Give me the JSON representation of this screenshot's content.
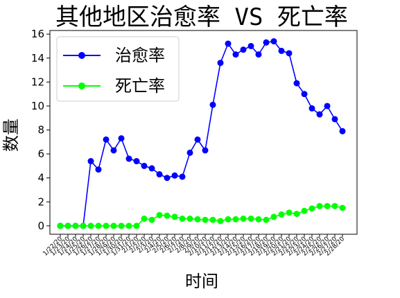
{
  "chart_data": {
    "type": "line",
    "title": "其他地区治愈率 VS 死亡率",
    "xlabel": "时间",
    "ylabel": "数量",
    "ylim": [
      -0.7,
      16.3
    ],
    "yticks": [
      0,
      2,
      4,
      6,
      8,
      10,
      12,
      14,
      16
    ],
    "grid": false,
    "legend_position": "top-left",
    "categories": [
      "1/22/20",
      "1/23/20",
      "1/24/20",
      "1/25/20",
      "1/26/20",
      "1/27/20",
      "1/28/20",
      "1/29/20",
      "1/30/20",
      "1/31/20",
      "2/1/20",
      "2/2/20",
      "2/3/20",
      "2/4/20",
      "2/5/20",
      "2/6/20",
      "2/7/20",
      "2/8/20",
      "2/9/20",
      "2/10/20",
      "2/11/20",
      "2/12/20",
      "2/13/20",
      "2/14/20",
      "2/15/20",
      "2/16/20",
      "2/17/20",
      "2/18/20",
      "2/19/20",
      "2/20/20",
      "2/21/20",
      "2/22/20",
      "2/23/20",
      "2/24/20",
      "2/25/20",
      "2/26/20",
      "2/27/20",
      "2/28/20"
    ],
    "series": [
      {
        "name": "治愈率",
        "color": "#0000ff",
        "values": [
          0,
          0,
          0,
          0,
          5.4,
          4.7,
          7.2,
          6.3,
          7.3,
          5.6,
          5.4,
          5.0,
          4.8,
          4.3,
          4.0,
          4.2,
          4.1,
          6.1,
          7.2,
          6.3,
          10.1,
          13.6,
          15.2,
          14.3,
          14.7,
          15.0,
          14.3,
          15.3,
          15.4,
          14.6,
          14.4,
          11.9,
          11.0,
          9.8,
          9.3,
          10.0,
          8.9,
          7.9
        ]
      },
      {
        "name": "死亡率",
        "color": "#00ff00",
        "values": [
          0,
          0,
          0,
          0,
          0,
          0,
          0,
          0,
          0,
          0,
          0,
          0.6,
          0.5,
          0.9,
          0.85,
          0.75,
          0.6,
          0.6,
          0.55,
          0.5,
          0.5,
          0.4,
          0.55,
          0.55,
          0.6,
          0.6,
          0.55,
          0.5,
          0.75,
          0.95,
          1.1,
          1.0,
          1.25,
          1.45,
          1.65,
          1.65,
          1.65,
          1.5
        ]
      }
    ]
  }
}
